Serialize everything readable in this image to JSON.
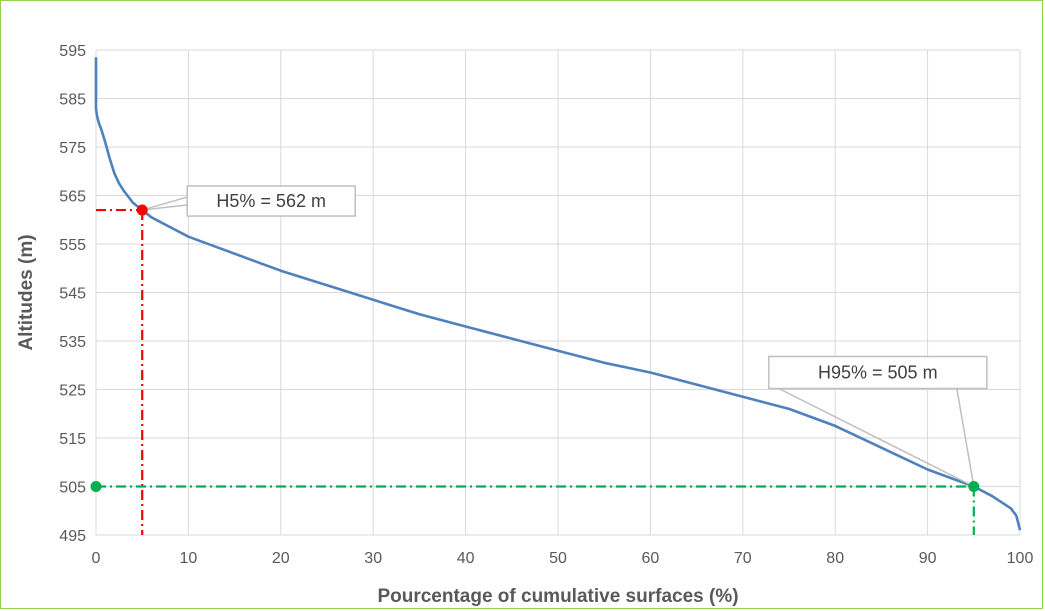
{
  "chart_data": {
    "type": "line",
    "xlabel": "Pourcentage of cumulative surfaces (%)",
    "ylabel": "Altitudes (m)",
    "xlim": [
      0,
      100
    ],
    "ylim": [
      495,
      595
    ],
    "x_ticks": [
      0,
      10,
      20,
      30,
      40,
      50,
      60,
      70,
      80,
      90,
      100
    ],
    "y_ticks": [
      495,
      505,
      515,
      525,
      535,
      545,
      555,
      565,
      575,
      585,
      595
    ],
    "grid": true,
    "series": [
      {
        "color": "#4f81bd",
        "x": [
          0,
          0,
          0.1,
          0.3,
          0.6,
          1,
          1.5,
          2,
          2.5,
          3,
          4,
          5,
          6,
          8,
          10,
          15,
          20,
          25,
          30,
          35,
          40,
          45,
          50,
          55,
          60,
          65,
          70,
          75,
          80,
          85,
          90,
          95,
          97,
          99,
          99.6,
          100
        ],
        "y": [
          593.5,
          583,
          581.5,
          580,
          578.5,
          576,
          572.5,
          569.5,
          567.5,
          566,
          563.5,
          562,
          560.5,
          558.5,
          556.5,
          553,
          549.5,
          546.5,
          543.5,
          540.5,
          538,
          535.5,
          533,
          530.5,
          528.5,
          526,
          523.5,
          521,
          517.5,
          513,
          508.5,
          505,
          503,
          500.5,
          499,
          496
        ]
      }
    ],
    "reference_lines": [
      {
        "color": "#ff0000",
        "x": 5,
        "y": 562
      },
      {
        "color": "#00b050",
        "x": 95,
        "y": 505
      }
    ],
    "points": [
      {
        "x": 5,
        "y": 562,
        "color": "#ff0000"
      },
      {
        "x": 95,
        "y": 505,
        "color": "#00b050"
      },
      {
        "x": 0,
        "y": 505,
        "color": "#00b050"
      }
    ],
    "annotations": [
      {
        "text": "H5% = 562 m",
        "x": 5,
        "y": 562
      },
      {
        "text": "H95% = 505 m",
        "x": 95,
        "y": 505
      }
    ]
  }
}
